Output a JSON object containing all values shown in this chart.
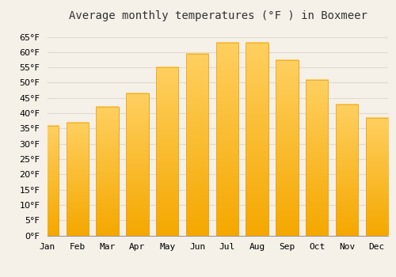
{
  "title": "Average monthly temperatures (°F ) in Boxmeer",
  "months": [
    "Jan",
    "Feb",
    "Mar",
    "Apr",
    "May",
    "Jun",
    "Jul",
    "Aug",
    "Sep",
    "Oct",
    "Nov",
    "Dec"
  ],
  "values": [
    36,
    37,
    42,
    46.5,
    55,
    59.5,
    63,
    63,
    57.5,
    51,
    43,
    38.5
  ],
  "bar_color_top": "#FFD060",
  "bar_color_bottom": "#F5A800",
  "bar_edge_color": "#E8A020",
  "background_color": "#F5F0E8",
  "plot_bg_color": "#F5F0E8",
  "grid_color": "#E0DAD0",
  "title_fontsize": 10,
  "tick_fontsize": 8,
  "ylim": [
    0,
    68
  ],
  "yticks": [
    0,
    5,
    10,
    15,
    20,
    25,
    30,
    35,
    40,
    45,
    50,
    55,
    60,
    65
  ],
  "ylabel_suffix": "°F"
}
